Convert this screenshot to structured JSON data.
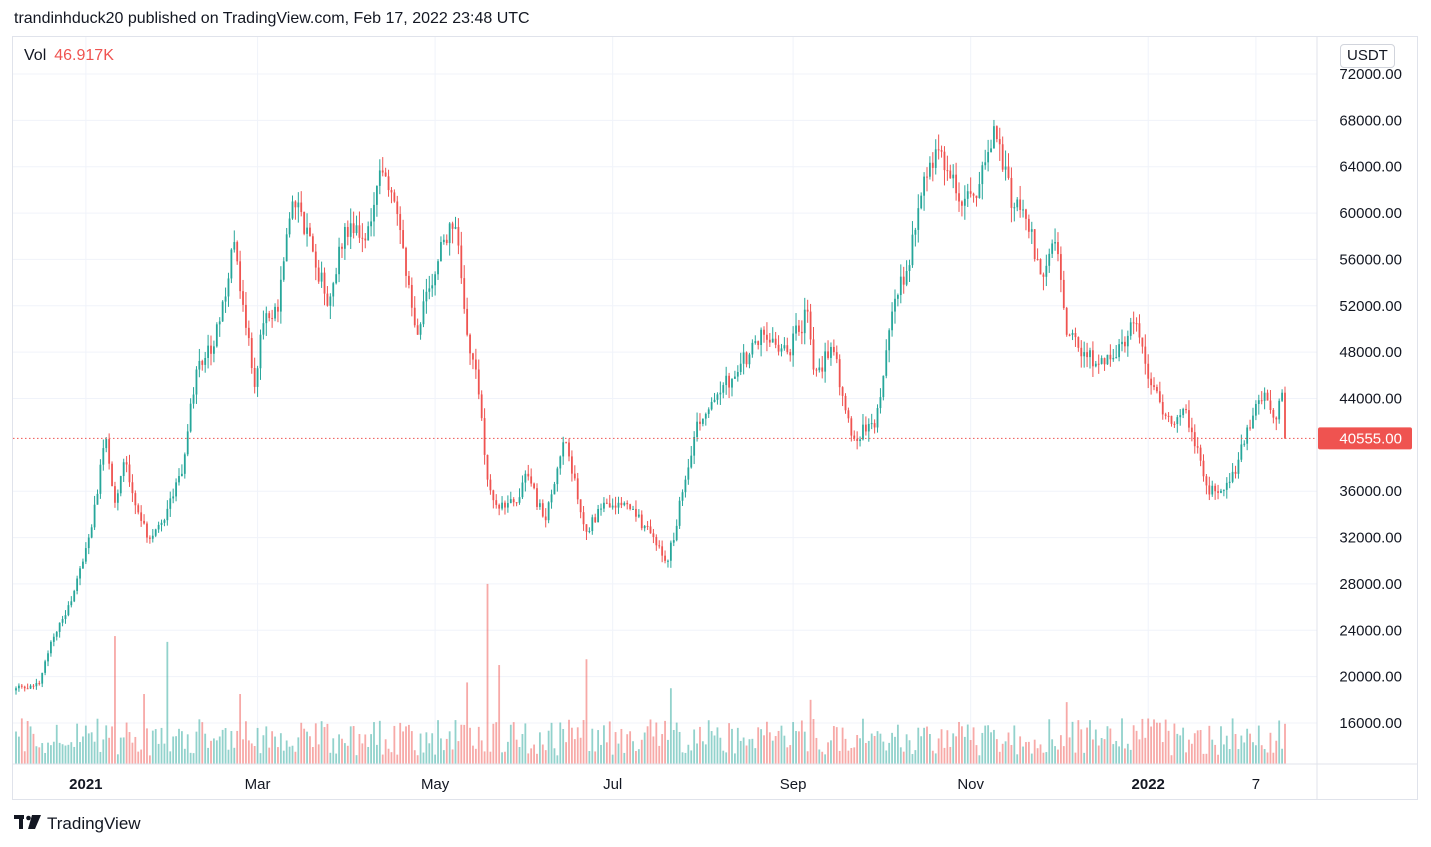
{
  "header": {
    "publisher": "trandinhduck20 published on TradingView.com, Feb 17, 2022 23:48 UTC"
  },
  "volume_legend": {
    "label": "Vol",
    "value": "46.917K"
  },
  "price_unit": "USDT",
  "footer": {
    "brand": "TradingView"
  },
  "colors": {
    "up": "#26a69a",
    "down": "#ef5350",
    "last_price": "#ef5350",
    "grid": "#f0f3fa"
  },
  "chart_data": {
    "type": "candlestick",
    "symbol_quote": "USDT",
    "y_axis": {
      "min": 12000,
      "max": 72000,
      "ticks": [
        "72000.00",
        "68000.00",
        "64000.00",
        "60000.00",
        "56000.00",
        "52000.00",
        "48000.00",
        "44000.00",
        "36000.00",
        "32000.00",
        "28000.00",
        "24000.00",
        "20000.00",
        "16000.00"
      ]
    },
    "last_price": {
      "value": 40555,
      "label": "40555.00"
    },
    "x_axis": {
      "start": "2020-12-08",
      "end": "2022-02-17",
      "ticks": [
        {
          "label": "2021",
          "date": "2021-01-01",
          "bold": true
        },
        {
          "label": "Mar",
          "date": "2021-03-01",
          "bold": false
        },
        {
          "label": "May",
          "date": "2021-05-01",
          "bold": false
        },
        {
          "label": "Jul",
          "date": "2021-07-01",
          "bold": false
        },
        {
          "label": "Sep",
          "date": "2021-09-01",
          "bold": false
        },
        {
          "label": "Nov",
          "date": "2021-11-01",
          "bold": false
        },
        {
          "label": "2022",
          "date": "2022-01-01",
          "bold": true
        },
        {
          "label": "7",
          "date": "2022-02-07",
          "bold": false
        }
      ]
    },
    "price_path": [
      [
        "2020-12-08",
        19000
      ],
      [
        "2020-12-16",
        19400
      ],
      [
        "2020-12-20",
        23000
      ],
      [
        "2020-12-27",
        26500
      ],
      [
        "2021-01-02",
        32000
      ],
      [
        "2021-01-08",
        40500
      ],
      [
        "2021-01-11",
        35000
      ],
      [
        "2021-01-14",
        38500
      ],
      [
        "2021-01-22",
        32000
      ],
      [
        "2021-01-28",
        33500
      ],
      [
        "2021-02-03",
        37500
      ],
      [
        "2021-02-08",
        46500
      ],
      [
        "2021-02-14",
        48500
      ],
      [
        "2021-02-21",
        57500
      ],
      [
        "2021-02-28",
        45000
      ],
      [
        "2021-03-03",
        50500
      ],
      [
        "2021-03-08",
        51500
      ],
      [
        "2021-03-13",
        61000
      ],
      [
        "2021-03-19",
        58000
      ],
      [
        "2021-03-25",
        52000
      ],
      [
        "2021-03-31",
        58800
      ],
      [
        "2021-04-06",
        57800
      ],
      [
        "2021-04-13",
        63500
      ],
      [
        "2021-04-17",
        61000
      ],
      [
        "2021-04-25",
        49500
      ],
      [
        "2021-04-29",
        53500
      ],
      [
        "2021-05-03",
        57500
      ],
      [
        "2021-05-08",
        58800
      ],
      [
        "2021-05-12",
        49500
      ],
      [
        "2021-05-15",
        46500
      ],
      [
        "2021-05-19",
        37000
      ],
      [
        "2021-05-23",
        34500
      ],
      [
        "2021-05-29",
        35000
      ],
      [
        "2021-06-01",
        37500
      ],
      [
        "2021-06-08",
        33500
      ],
      [
        "2021-06-13",
        39000
      ],
      [
        "2021-06-15",
        40200
      ],
      [
        "2021-06-22",
        32500
      ],
      [
        "2021-06-27",
        34500
      ],
      [
        "2021-07-03",
        35000
      ],
      [
        "2021-07-09",
        33800
      ],
      [
        "2021-07-20",
        30000
      ],
      [
        "2021-07-26",
        37000
      ],
      [
        "2021-07-30",
        42000
      ],
      [
        "2021-08-07",
        44500
      ],
      [
        "2021-08-14",
        47000
      ],
      [
        "2021-08-22",
        49500
      ],
      [
        "2021-08-30",
        48000
      ],
      [
        "2021-09-06",
        51500
      ],
      [
        "2021-09-08",
        46500
      ],
      [
        "2021-09-15",
        48000
      ],
      [
        "2021-09-21",
        40800
      ],
      [
        "2021-09-29",
        41500
      ],
      [
        "2021-10-05",
        51500
      ],
      [
        "2021-10-10",
        55000
      ],
      [
        "2021-10-15",
        61500
      ],
      [
        "2021-10-20",
        65500
      ],
      [
        "2021-10-25",
        63000
      ],
      [
        "2021-10-28",
        61000
      ],
      [
        "2021-11-02",
        61500
      ],
      [
        "2021-11-09",
        67500
      ],
      [
        "2021-11-16",
        60500
      ],
      [
        "2021-11-20",
        59500
      ],
      [
        "2021-11-26",
        54500
      ],
      [
        "2021-11-30",
        57500
      ],
      [
        "2021-12-04",
        49500
      ],
      [
        "2021-12-10",
        48000
      ],
      [
        "2021-12-14",
        47000
      ],
      [
        "2021-12-20",
        47500
      ],
      [
        "2021-12-27",
        50500
      ],
      [
        "2021-12-31",
        47000
      ],
      [
        "2022-01-07",
        42500
      ],
      [
        "2022-01-10",
        41800
      ],
      [
        "2022-01-14",
        43000
      ],
      [
        "2022-01-21",
        36500
      ],
      [
        "2022-01-24",
        36000
      ],
      [
        "2022-01-31",
        37500
      ],
      [
        "2022-02-04",
        41500
      ],
      [
        "2022-02-10",
        44500
      ],
      [
        "2022-02-14",
        42200
      ],
      [
        "2022-02-16",
        44500
      ],
      [
        "2022-02-17",
        40555
      ]
    ],
    "volume_spikes": [
      [
        "2021-01-11",
        23500
      ],
      [
        "2021-01-21",
        18500
      ],
      [
        "2021-01-29",
        23000
      ],
      [
        "2021-02-23",
        18500
      ],
      [
        "2021-05-12",
        19500
      ],
      [
        "2021-05-19",
        28000
      ],
      [
        "2021-05-23",
        21000
      ],
      [
        "2021-06-22",
        21500
      ],
      [
        "2021-07-21",
        19000
      ],
      [
        "2021-09-07",
        18000
      ],
      [
        "2021-12-04",
        17800
      ]
    ]
  }
}
